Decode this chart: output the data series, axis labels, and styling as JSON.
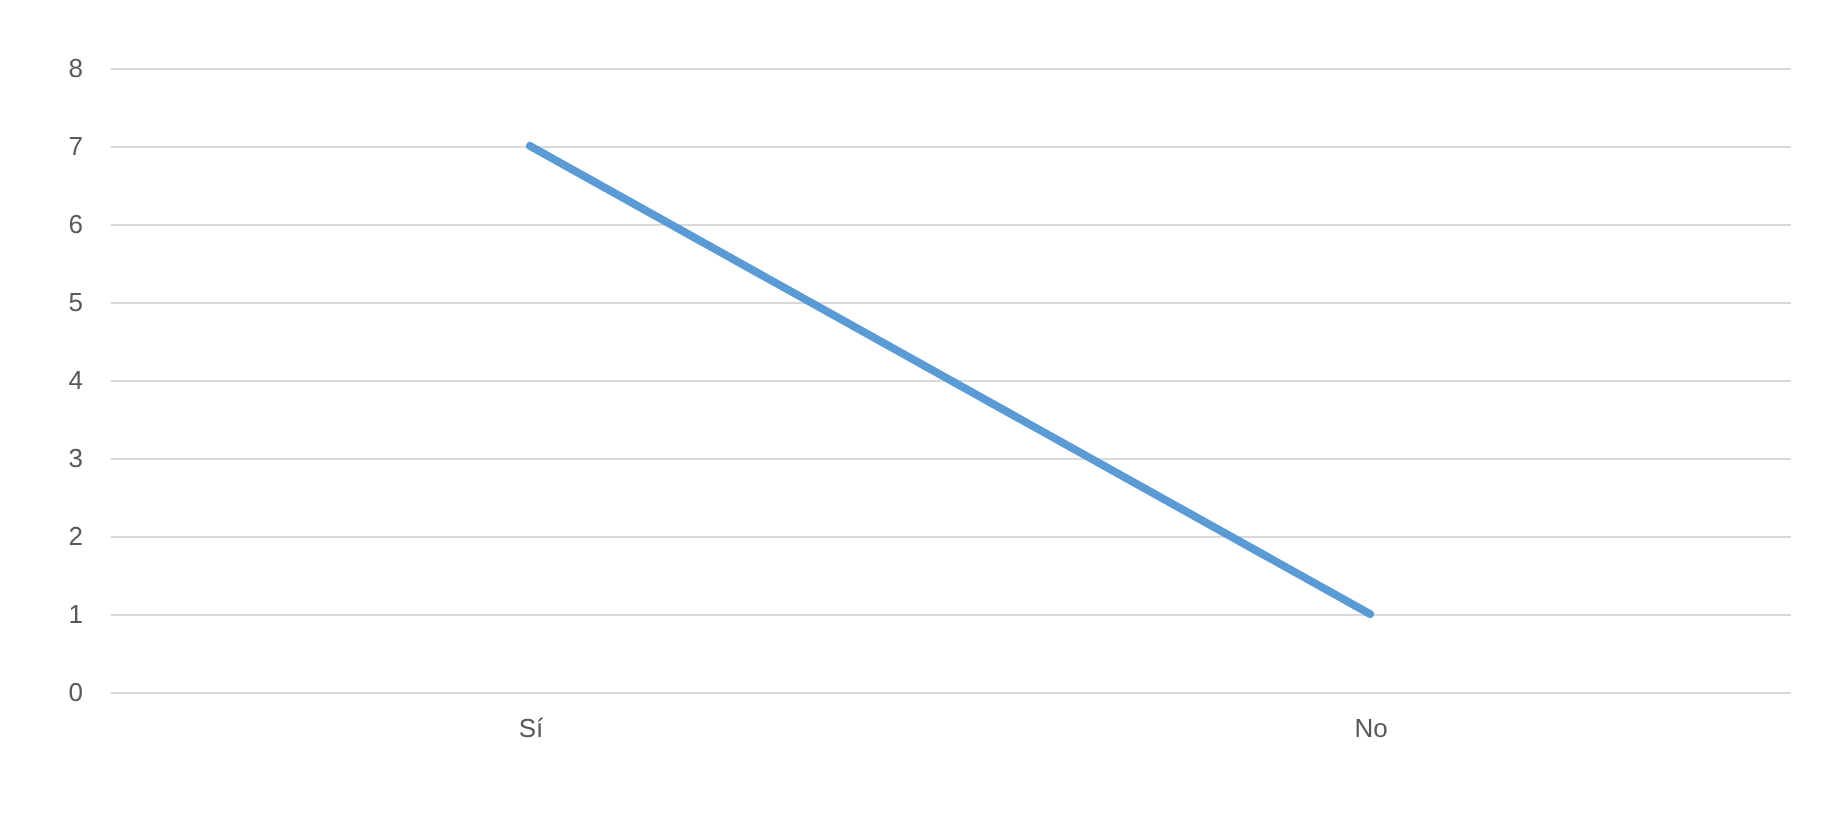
{
  "chart_data": {
    "type": "line",
    "categories": [
      "Sí",
      "No"
    ],
    "series": [
      {
        "color": "#5b9bd5",
        "values": [
          7,
          1
        ]
      }
    ],
    "ylim": [
      0,
      8
    ],
    "yticks": [
      0,
      1,
      2,
      3,
      4,
      5,
      6,
      7,
      8
    ],
    "grid": "y"
  }
}
